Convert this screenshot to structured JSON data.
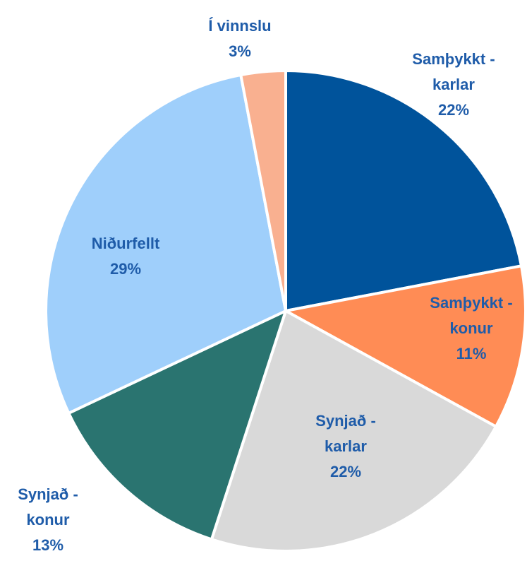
{
  "chart_data": {
    "type": "pie",
    "categories": [
      "Samþykkt - karlar",
      "Samþykkt - konur",
      "Synjað - karlar",
      "Synjað - konur",
      "Niðurfellt",
      "Í vinnslu"
    ],
    "values": [
      22,
      11,
      22,
      13,
      29,
      3
    ],
    "value_labels": [
      "22%",
      "11%",
      "22%",
      "13%",
      "29%",
      "3%"
    ],
    "colors": [
      "#00539b",
      "#ff8c55",
      "#d9d9d9",
      "#2a7470",
      "#9fcffb",
      "#f9b090"
    ]
  }
}
